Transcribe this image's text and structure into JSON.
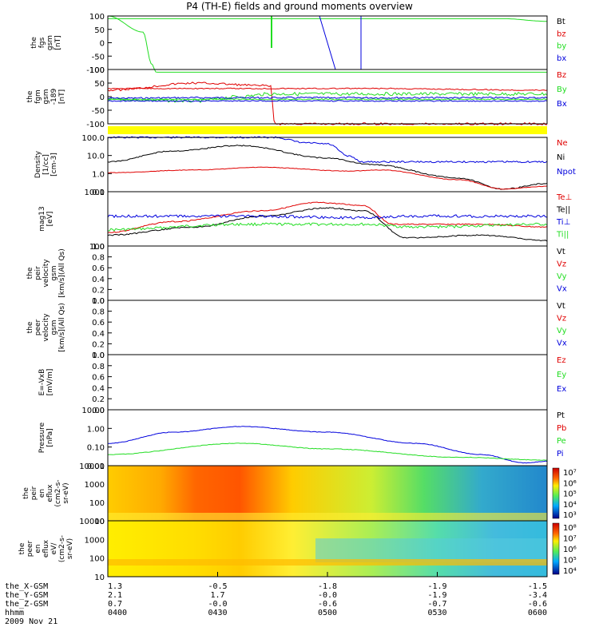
{
  "title": "P4 (TH-E) fields and ground moments overview",
  "colors": {
    "black": "#000000",
    "red": "#e00000",
    "green": "#22dd22",
    "blue": "#0000dd",
    "yellow": "#ffff00"
  },
  "panels": [
    {
      "id": "fgs",
      "ylabel": [
        "the",
        "fgs",
        "gsm",
        "[nT]"
      ],
      "yticks": [
        "100",
        "50",
        "0",
        "-50",
        "-100"
      ],
      "legend": [
        {
          "text": "Bt",
          "color": "black"
        },
        {
          "text": "bz",
          "color": "red"
        },
        {
          "text": "by",
          "color": "green"
        },
        {
          "text": "bx",
          "color": "blue"
        }
      ]
    },
    {
      "id": "fgm",
      "ylabel": [
        "the",
        "fgm",
        "gsm",
        "-189",
        "[nT]"
      ],
      "yticks": [
        "100",
        "50",
        "0",
        "-50",
        "-100"
      ],
      "legend": [
        {
          "text": "Bz",
          "color": "red"
        },
        {
          "text": "By",
          "color": "green"
        },
        {
          "text": "Bx",
          "color": "blue"
        }
      ]
    },
    {
      "id": "density",
      "ylabel": [
        "Density",
        "[1/cc]",
        "[cm-3]"
      ],
      "yticks": [
        "100.0",
        "10.0",
        "1.0",
        "0.1"
      ],
      "legend": [
        {
          "text": "Ne",
          "color": "red"
        },
        {
          "text": "Ni",
          "color": "black"
        },
        {
          "text": "Npot",
          "color": "blue"
        }
      ]
    },
    {
      "id": "temp",
      "ylabel": [
        "mag13",
        "[eV]"
      ],
      "yticks": [
        "1000",
        "100"
      ],
      "legend": [
        {
          "text": "Te⊥",
          "color": "red"
        },
        {
          "text": "Te||",
          "color": "black"
        },
        {
          "text": "Ti⊥",
          "color": "blue"
        },
        {
          "text": "Ti||",
          "color": "green"
        }
      ]
    },
    {
      "id": "peir_vel",
      "ylabel": [
        "the",
        "peir",
        "velocity",
        "gsm",
        "[km/s](All Qs)"
      ],
      "yticks": [
        "1.0",
        "0.8",
        "0.6",
        "0.4",
        "0.2",
        "0.0"
      ],
      "legend": [
        {
          "text": "Vt",
          "color": "black"
        },
        {
          "text": "Vz",
          "color": "red"
        },
        {
          "text": "Vy",
          "color": "green"
        },
        {
          "text": "Vx",
          "color": "blue"
        }
      ]
    },
    {
      "id": "peer_vel",
      "ylabel": [
        "the",
        "peer",
        "velocity",
        "gsm",
        "[km/s](All Qs)"
      ],
      "yticks": [
        "1.0",
        "0.8",
        "0.6",
        "0.4",
        "0.2",
        "0.0"
      ],
      "legend": [
        {
          "text": "Vt",
          "color": "black"
        },
        {
          "text": "Vz",
          "color": "red"
        },
        {
          "text": "Vy",
          "color": "green"
        },
        {
          "text": "Vx",
          "color": "blue"
        }
      ]
    },
    {
      "id": "efield",
      "ylabel": [
        "E=-VxB",
        "[mV/m]"
      ],
      "yticks": [
        "1.0",
        "0.8",
        "0.6",
        "0.4",
        "0.2",
        "0.0"
      ],
      "legend": [
        {
          "text": "Ez",
          "color": "red"
        },
        {
          "text": "Ey",
          "color": "green"
        },
        {
          "text": "Ex",
          "color": "blue"
        }
      ]
    },
    {
      "id": "pressure",
      "ylabel": [
        "Pressure",
        "[nPa]"
      ],
      "yticks": [
        "10.00",
        "1.00",
        "0.10",
        "0.01"
      ],
      "legend": [
        {
          "text": "Pt",
          "color": "black"
        },
        {
          "text": "Pb",
          "color": "red"
        },
        {
          "text": "Pe",
          "color": "green"
        },
        {
          "text": "Pi",
          "color": "blue"
        }
      ]
    },
    {
      "id": "peir_spec",
      "ylabel": [
        "the",
        "peir",
        "en",
        "eflux",
        "(cm2-s-",
        "sr-eV)"
      ],
      "yticks": [
        "10000",
        "1000",
        "100",
        "10"
      ],
      "colorbar": [
        "10⁷",
        "10⁶",
        "10⁵",
        "10⁴",
        "10³"
      ]
    },
    {
      "id": "peer_spec",
      "ylabel": [
        "the",
        "peer",
        "en",
        "eflux",
        "eV/",
        "(cm2-s-",
        "sr-eV)"
      ],
      "yticks": [
        "10000",
        "1000",
        "100",
        "10"
      ],
      "colorbar": [
        "10⁸",
        "10⁷",
        "10⁶",
        "10⁵",
        "10⁴"
      ]
    }
  ],
  "ephemeris": {
    "labels": [
      "the_X-GSM",
      "the_Y-GSM",
      "the_Z-GSM",
      "hhmm",
      "2009 Nov 21"
    ],
    "columns": [
      [
        "1.3",
        "2.1",
        "0.7",
        "0400"
      ],
      [
        "-0.5",
        "1.7",
        "-0.0",
        "0430"
      ],
      [
        "-1.8",
        "-0.0",
        "-0.6",
        "0500"
      ],
      [
        "-1.9",
        "-1.9",
        "-0.7",
        "0530"
      ],
      [
        "-1.5",
        "-3.4",
        "-0.6",
        "0600"
      ]
    ]
  },
  "chart_data": {
    "type": "line",
    "title": "P4 (TH-E) fields and ground moments overview",
    "time_ticks": [
      "0400",
      "0430",
      "0500",
      "0530",
      "0600"
    ],
    "series": [
      {
        "name": "Ni",
        "panel": "density",
        "x": [
          "0400",
          "0415",
          "0430",
          "0445",
          "0500",
          "0515",
          "0530",
          "0545",
          "0600"
        ],
        "values": [
          5,
          18,
          45,
          32,
          10,
          4,
          1,
          0.2,
          0.15
        ]
      },
      {
        "name": "Ne",
        "panel": "density",
        "x": [
          "0400",
          "0415",
          "0430",
          "0445",
          "0500",
          "0515",
          "0530",
          "0545",
          "0600"
        ],
        "values": [
          0.8,
          1.3,
          2.5,
          1.8,
          1.0,
          1.0,
          0.6,
          0.2,
          0.18
        ]
      },
      {
        "name": "Pi",
        "panel": "pressure",
        "x": [
          "0400",
          "0415",
          "0430",
          "0445",
          "0500",
          "0515",
          "0530",
          "0545",
          "0600"
        ],
        "values": [
          0.2,
          0.7,
          2.0,
          1.5,
          0.5,
          0.3,
          0.08,
          0.02,
          0.02
        ]
      },
      {
        "name": "Pe",
        "panel": "pressure",
        "x": [
          "0400",
          "0415",
          "0430",
          "0445",
          "0500",
          "0515",
          "0530",
          "0545",
          "0600"
        ],
        "values": [
          0.05,
          0.1,
          0.15,
          0.12,
          0.08,
          0.05,
          0.03,
          0.02,
          0.01
        ]
      }
    ]
  }
}
